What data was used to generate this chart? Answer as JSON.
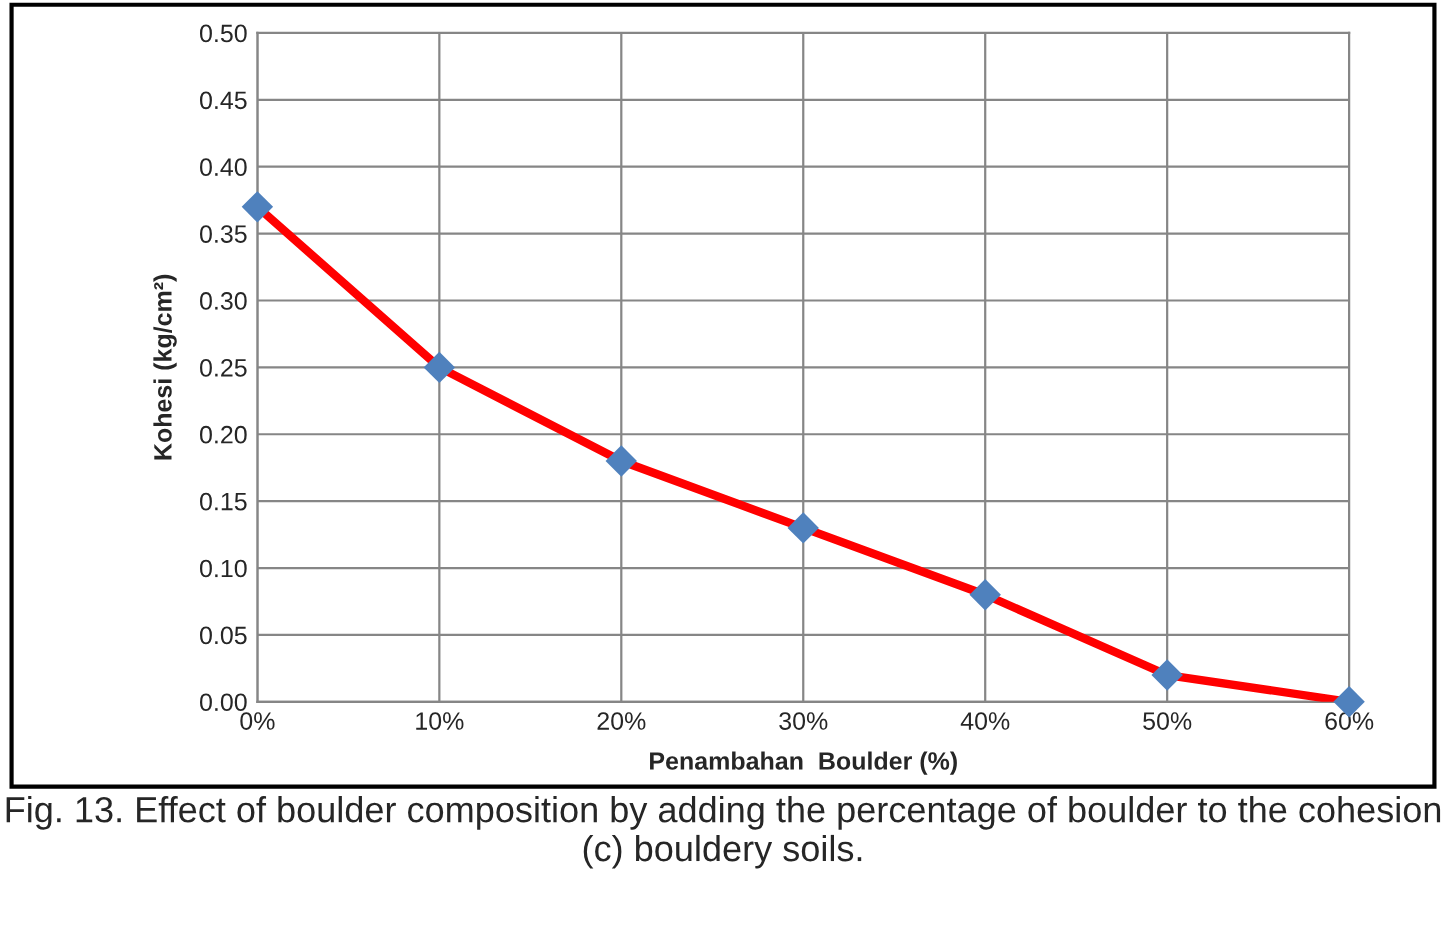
{
  "chart_data": {
    "type": "line",
    "categories": [
      "0%",
      "10%",
      "20%",
      "30%",
      "40%",
      "50%",
      "60%"
    ],
    "series": [
      {
        "color": "#ff0000",
        "colors": [
          "#4f81bd",
          "#4f81bd",
          "#4f81bd",
          "#4f81bd",
          "#4f81bd",
          "#4f81bd",
          "#4f81bd"
        ],
        "values": [
          0.37,
          0.25,
          0.18,
          0.13,
          0.08,
          0.02,
          0.0
        ]
      }
    ],
    "xlabel": "Penambahan  Boulder (%)",
    "ylabel": "Kohesi (kg/cm²)",
    "ylim": [
      0,
      0.5
    ],
    "yticks": [
      {
        "value": 0,
        "label": "0.00"
      },
      {
        "value": 0.05,
        "label": "0.05"
      },
      {
        "value": 0.1,
        "label": "0.10"
      },
      {
        "value": 0.15,
        "label": "0.15"
      },
      {
        "value": 0.2,
        "label": "0.20"
      },
      {
        "value": 0.25,
        "label": "0.25"
      },
      {
        "value": 0.3,
        "label": "0.30"
      },
      {
        "value": 0.35,
        "label": "0.35"
      },
      {
        "value": 0.4,
        "label": "0.40"
      },
      {
        "value": 0.45,
        "label": "0.45"
      },
      {
        "value": 0.5,
        "label": "0.50"
      }
    ],
    "grid": true,
    "marker": "diamond",
    "line_style": "solid",
    "legend": false,
    "annotations": [
      "Fig. 13. Effect of boulder composition by adding the percentage of boulder to the cohesion (c) bouldery soils."
    ]
  }
}
